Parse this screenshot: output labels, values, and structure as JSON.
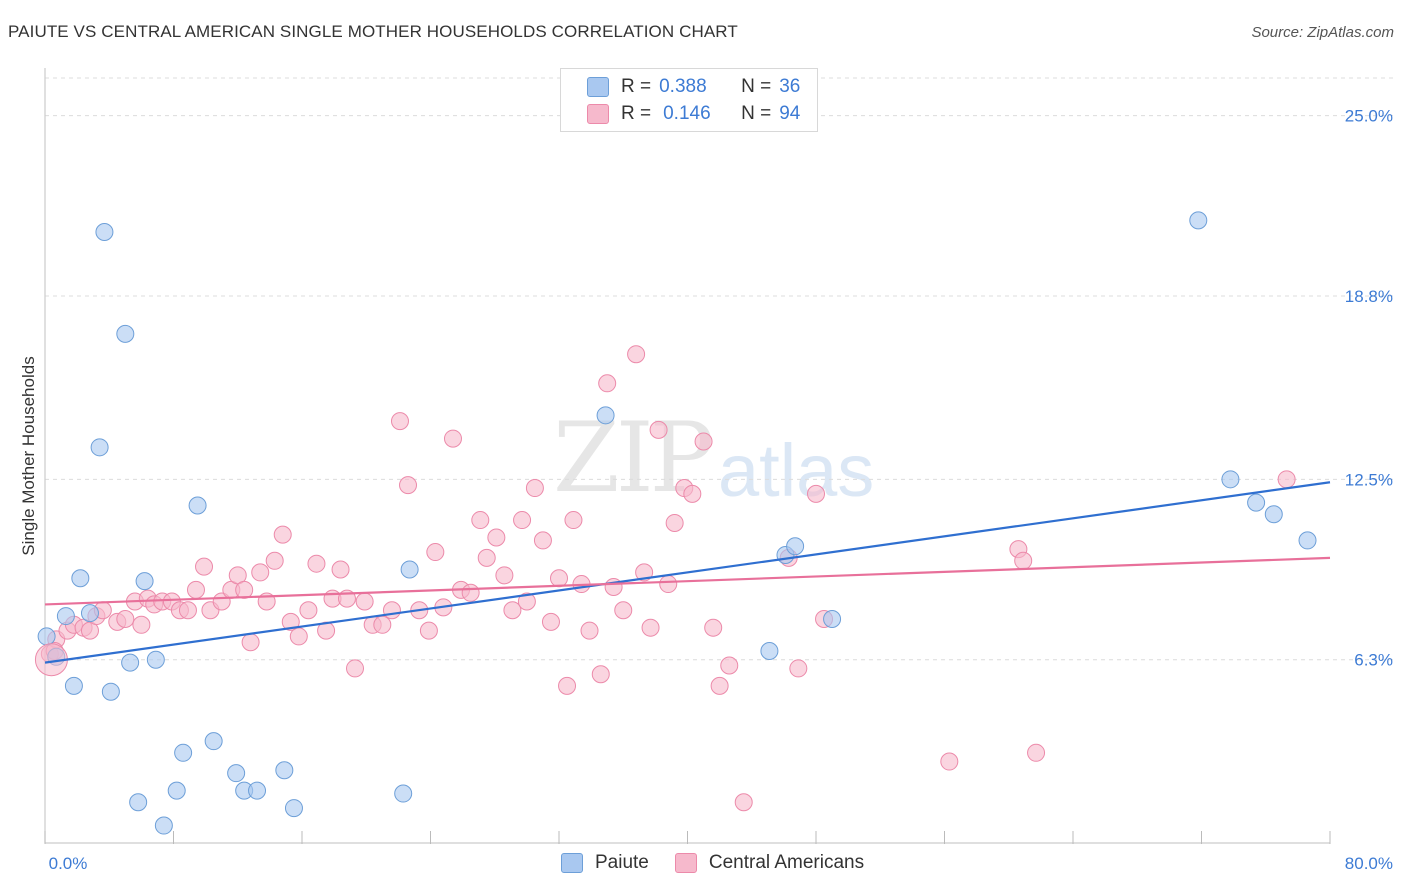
{
  "header": {
    "title": "PAIUTE VS CENTRAL AMERICAN SINGLE MOTHER HOUSEHOLDS CORRELATION CHART",
    "source": "Source: ZipAtlas.com"
  },
  "watermark": {
    "zip": "ZIP",
    "atlas": "atlas"
  },
  "legend": {
    "rows": [
      {
        "r_label": "R =",
        "r_value": "0.388",
        "n_label": "N =",
        "n_value": "36",
        "color": "#a9c8f0"
      },
      {
        "r_label": "R =",
        "r_value": "0.146",
        "n_label": "N =",
        "n_value": "94",
        "color": "#f6b9cc"
      }
    ]
  },
  "bottom_legend": {
    "items": [
      {
        "label": "Paiute"
      },
      {
        "label": "Central Americans"
      }
    ]
  },
  "chart_data": {
    "type": "scatter",
    "title": "PAIUTE VS CENTRAL AMERICAN SINGLE MOTHER HOUSEHOLDS CORRELATION CHART",
    "xlabel": "",
    "ylabel": "Single Mother Households",
    "xlim": [
      0,
      80
    ],
    "ylim": [
      0,
      26.5
    ],
    "x_tick_labels": [
      "0.0%",
      "80.0%"
    ],
    "y_ticks": [
      6.3,
      12.5,
      18.8,
      25.0
    ],
    "y_tick_labels": [
      "6.3%",
      "12.5%",
      "18.8%",
      "25.0%"
    ],
    "grid": "horizontal dashed",
    "legend_position": "top-center",
    "series": [
      {
        "name": "Paiute",
        "color": "#a9c8f0",
        "stroke": "#6d9fd8",
        "trend_color": "#2f6fd0",
        "trend": {
          "x": [
            0,
            80
          ],
          "y": [
            6.2,
            12.4
          ]
        },
        "points": [
          [
            0.1,
            7.1
          ],
          [
            0.7,
            6.4
          ],
          [
            1.3,
            7.8
          ],
          [
            1.8,
            5.4
          ],
          [
            2.2,
            9.1
          ],
          [
            2.8,
            7.9
          ],
          [
            3.4,
            13.6
          ],
          [
            3.7,
            21.0
          ],
          [
            4.1,
            5.2
          ],
          [
            5.0,
            17.5
          ],
          [
            5.3,
            6.2
          ],
          [
            5.8,
            1.4
          ],
          [
            6.2,
            9.0
          ],
          [
            6.9,
            6.3
          ],
          [
            7.4,
            0.6
          ],
          [
            8.2,
            1.8
          ],
          [
            8.6,
            3.1
          ],
          [
            9.5,
            11.6
          ],
          [
            10.5,
            3.5
          ],
          [
            11.9,
            2.4
          ],
          [
            12.4,
            1.8
          ],
          [
            13.2,
            1.8
          ],
          [
            14.9,
            2.5
          ],
          [
            15.5,
            1.2
          ],
          [
            22.3,
            1.7
          ],
          [
            22.7,
            9.4
          ],
          [
            34.9,
            14.7
          ],
          [
            45.1,
            6.6
          ],
          [
            46.1,
            9.9
          ],
          [
            46.7,
            10.2
          ],
          [
            49.0,
            7.7
          ],
          [
            71.8,
            21.4
          ],
          [
            73.8,
            12.5
          ],
          [
            75.4,
            11.7
          ],
          [
            76.5,
            11.3
          ],
          [
            78.6,
            10.4
          ]
        ]
      },
      {
        "name": "Central Americans",
        "color": "#f6b9cc",
        "stroke": "#ec8aaa",
        "trend_color": "#e8709a",
        "trend": {
          "x": [
            0,
            80
          ],
          "y": [
            8.2,
            9.8
          ]
        },
        "points": [
          [
            0.3,
            6.5
          ],
          [
            0.7,
            7.0
          ],
          [
            1.4,
            7.3
          ],
          [
            1.8,
            7.5
          ],
          [
            2.4,
            7.4
          ],
          [
            2.8,
            7.3
          ],
          [
            3.2,
            7.8
          ],
          [
            3.6,
            8.0
          ],
          [
            4.5,
            7.6
          ],
          [
            5.0,
            7.7
          ],
          [
            5.6,
            8.3
          ],
          [
            6.0,
            7.5
          ],
          [
            6.4,
            8.4
          ],
          [
            6.8,
            8.2
          ],
          [
            7.3,
            8.3
          ],
          [
            7.9,
            8.3
          ],
          [
            8.4,
            8.0
          ],
          [
            8.9,
            8.0
          ],
          [
            9.4,
            8.7
          ],
          [
            9.9,
            9.5
          ],
          [
            10.3,
            8.0
          ],
          [
            11.0,
            8.3
          ],
          [
            11.6,
            8.7
          ],
          [
            12.0,
            9.2
          ],
          [
            12.4,
            8.7
          ],
          [
            12.8,
            6.9
          ],
          [
            13.4,
            9.3
          ],
          [
            13.8,
            8.3
          ],
          [
            14.3,
            9.7
          ],
          [
            14.8,
            10.6
          ],
          [
            15.3,
            7.6
          ],
          [
            15.8,
            7.1
          ],
          [
            16.4,
            8.0
          ],
          [
            16.9,
            9.6
          ],
          [
            17.5,
            7.3
          ],
          [
            17.9,
            8.4
          ],
          [
            18.4,
            9.4
          ],
          [
            18.8,
            8.4
          ],
          [
            19.3,
            6.0
          ],
          [
            19.9,
            8.3
          ],
          [
            20.4,
            7.5
          ],
          [
            21.0,
            7.5
          ],
          [
            21.6,
            8.0
          ],
          [
            22.1,
            14.5
          ],
          [
            22.6,
            12.3
          ],
          [
            23.3,
            8.0
          ],
          [
            23.9,
            7.3
          ],
          [
            24.3,
            10.0
          ],
          [
            24.8,
            8.1
          ],
          [
            25.4,
            13.9
          ],
          [
            25.9,
            8.7
          ],
          [
            26.5,
            8.6
          ],
          [
            27.1,
            11.1
          ],
          [
            27.5,
            9.8
          ],
          [
            28.1,
            10.5
          ],
          [
            28.6,
            9.2
          ],
          [
            29.1,
            8.0
          ],
          [
            29.7,
            11.1
          ],
          [
            30.0,
            8.3
          ],
          [
            30.5,
            12.2
          ],
          [
            31.0,
            10.4
          ],
          [
            31.5,
            7.6
          ],
          [
            32.0,
            9.1
          ],
          [
            32.5,
            5.4
          ],
          [
            32.9,
            11.1
          ],
          [
            33.4,
            8.9
          ],
          [
            33.9,
            7.3
          ],
          [
            34.6,
            5.8
          ],
          [
            35.0,
            15.8
          ],
          [
            35.4,
            8.8
          ],
          [
            36.0,
            8.0
          ],
          [
            36.8,
            16.8
          ],
          [
            37.3,
            9.3
          ],
          [
            37.7,
            7.4
          ],
          [
            38.2,
            14.2
          ],
          [
            38.8,
            8.9
          ],
          [
            39.2,
            11.0
          ],
          [
            39.8,
            12.2
          ],
          [
            40.3,
            12.0
          ],
          [
            41.0,
            13.8
          ],
          [
            41.6,
            7.4
          ],
          [
            42.0,
            5.4
          ],
          [
            42.6,
            6.1
          ],
          [
            43.5,
            1.4
          ],
          [
            46.3,
            9.8
          ],
          [
            46.9,
            6.0
          ],
          [
            48.0,
            12.0
          ],
          [
            48.5,
            7.7
          ],
          [
            56.3,
            2.8
          ],
          [
            60.6,
            10.1
          ],
          [
            60.9,
            9.7
          ],
          [
            61.7,
            3.1
          ],
          [
            77.3,
            12.5
          ],
          [
            0.6,
            6.6
          ]
        ]
      }
    ]
  }
}
